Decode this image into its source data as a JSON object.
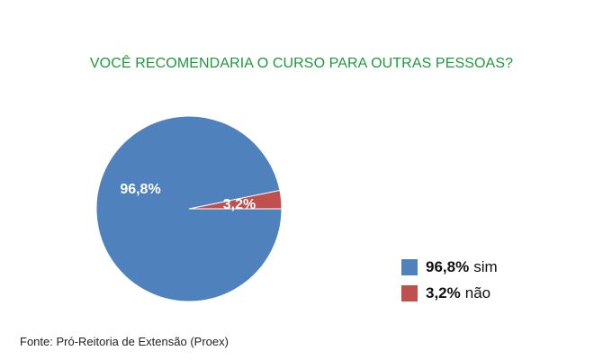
{
  "chart_data": {
    "type": "pie",
    "title": "VOCÊ RECOMENDARIA O CURSO PARA OUTRAS PESSOAS?",
    "slices": [
      {
        "label": "sim",
        "value": 96.8,
        "value_label": "96,8%",
        "color": "#4f81bd"
      },
      {
        "label": "não",
        "value": 3.2,
        "value_label": "3,2%",
        "color": "#c0504d"
      }
    ],
    "legend_placement": "bottom-right",
    "title_color": "#1e9a3a"
  },
  "source": "Fonte: Pró-Reitoria de Extensão (Proex)"
}
